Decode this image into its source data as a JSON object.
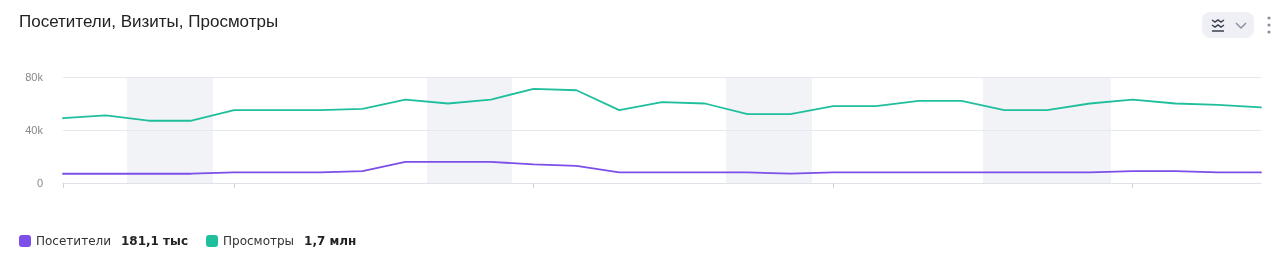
{
  "chart_data": {
    "type": "line",
    "title": "Посетители, Визиты, Просмотры",
    "categories": [
      null,
      null,
      null,
      null,
      null,
      null,
      null,
      null,
      null,
      null,
      null,
      null,
      null,
      null,
      null,
      null,
      null,
      null,
      null,
      null,
      null,
      null,
      null,
      null,
      null,
      null,
      null,
      null,
      null
    ],
    "ylim": [
      0,
      80000
    ],
    "yticks": [
      0,
      {
        "value": 40000,
        "label": "40k"
      },
      {
        "value": 80000,
        "label": "80k"
      }
    ],
    "tick_labels": "y",
    "grid": "y",
    "marker": "none",
    "line_style": "solid",
    "legend": "bottom left",
    "series": [
      {
        "name": "Посетители",
        "color": "#7b4fe8",
        "values": [
          7000,
          7000,
          7000,
          7000,
          8000,
          8000,
          8000,
          9000,
          16000,
          16000,
          16000,
          14000,
          13000,
          8000,
          8000,
          8000,
          8000,
          7000,
          8000,
          8000,
          8000,
          8000,
          8000,
          8000,
          8000,
          9000,
          9000,
          8000,
          8000
        ]
      },
      {
        "name": "Просмотры",
        "color": "#1fbf9e",
        "values": [
          49000,
          51000,
          47000,
          47000,
          55000,
          55000,
          55000,
          56000,
          63000,
          60000,
          63000,
          71000,
          70000,
          55000,
          61000,
          60000,
          52000,
          52000,
          58000,
          58000,
          62000,
          62000,
          55000,
          55000,
          60000,
          63000,
          60000,
          59000,
          57000
        ]
      }
    ],
    "annotations": [
      "181,1 тыс",
      "1,7 млн"
    ]
  }
}
